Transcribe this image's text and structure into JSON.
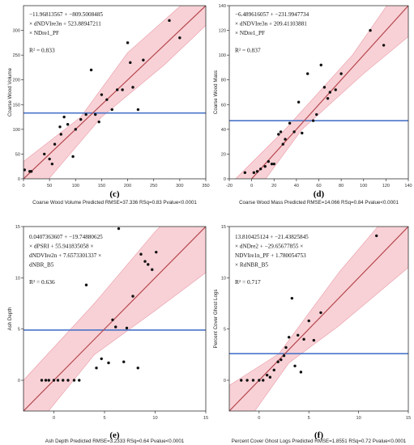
{
  "chart_data": [
    {
      "type": "scatter",
      "panel_label": "(c)",
      "equation_lines": [
        "−11.96813567 + −809.5008485",
        "× dNDVIre3n + 523.88947211",
        "× NDre1_PF"
      ],
      "r2": "R² = 0.833",
      "xlabel": "Coarse Wood Volume Predicted RMSE=37.336 RSq=0.83 Pvalue<0.0001",
      "ylabel": "Coarse Wood Volume",
      "xlim": [
        0,
        350
      ],
      "ylim": [
        0,
        350
      ],
      "xticks": [
        0,
        50,
        100,
        150,
        200,
        250,
        300,
        350
      ],
      "yticks": [
        0,
        50,
        100,
        150,
        200,
        250,
        300
      ],
      "mean_line": 133,
      "fit_line": [
        [
          0,
          0
        ],
        [
          350,
          350
        ]
      ],
      "band_lower": [
        [
          0,
          -60
        ],
        [
          150,
          125
        ],
        [
          270,
          230
        ],
        [
          350,
          310
        ]
      ],
      "band_upper": [
        [
          0,
          35
        ],
        [
          110,
          125
        ],
        [
          200,
          255
        ],
        [
          350,
          395
        ]
      ],
      "x": [
        2,
        12,
        15,
        40,
        50,
        55,
        60,
        70,
        72,
        78,
        85,
        95,
        100,
        110,
        120,
        130,
        138,
        145,
        150,
        160,
        170,
        180,
        190,
        200,
        205,
        210,
        220,
        230,
        280,
        300
      ],
      "y": [
        18,
        15,
        15,
        50,
        40,
        30,
        70,
        105,
        90,
        125,
        110,
        45,
        100,
        120,
        130,
        220,
        130,
        115,
        170,
        160,
        140,
        180,
        180,
        275,
        235,
        185,
        140,
        240,
        320,
        285
      ]
    },
    {
      "type": "scatter",
      "panel_label": "(d)",
      "equation_lines": [
        "−6.489616057 + −231.9947734",
        "× dNDVIre3n + 209.41103881",
        "× NDre1_PF"
      ],
      "r2": "R² = 0.837",
      "xlabel": "Coarse Wood Mass Predicted RMSE=14.066 RSq=0.84 Pvalue<0.0001",
      "ylabel": "Coarse Wood Mass",
      "xlim": [
        -20,
        140
      ],
      "ylim": [
        0,
        140
      ],
      "xticks": [
        -20,
        0,
        20,
        40,
        60,
        80,
        100,
        120,
        140
      ],
      "yticks": [
        0,
        20,
        40,
        60,
        80,
        100,
        120,
        140
      ],
      "mean_line": 47,
      "fit_line": [
        [
          -20,
          -20
        ],
        [
          140,
          140
        ]
      ],
      "band_lower": [
        [
          -20,
          -40
        ],
        [
          45,
          40
        ],
        [
          100,
          85
        ],
        [
          140,
          115
        ]
      ],
      "band_upper": [
        [
          -20,
          -5
        ],
        [
          30,
          40
        ],
        [
          90,
          100
        ],
        [
          140,
          165
        ]
      ],
      "x": [
        -6,
        2,
        5,
        8,
        12,
        15,
        18,
        20,
        24,
        26,
        28,
        30,
        34,
        38,
        42,
        45,
        50,
        55,
        58,
        62,
        65,
        68,
        70,
        75,
        80,
        106,
        118
      ],
      "y": [
        5,
        5,
        6,
        8,
        10,
        14,
        12,
        12,
        36,
        38,
        28,
        32,
        45,
        38,
        62,
        37,
        85,
        47,
        52,
        92,
        74,
        65,
        70,
        72,
        85,
        120,
        108
      ]
    },
    {
      "type": "scatter",
      "panel_label": "(e)",
      "equation_lines": [
        "0.0407363607 + −19.74880625",
        "× dPSRI + 55.941835058 ×",
        "dNDVIre2n + 7.6573301337 ×",
        "dNBR_B5"
      ],
      "r2": "R² = 0.636",
      "xlabel": "Ash Depth Predicted RMSE=3.2333 RSq=0.64 Pvalue<0.0001",
      "ylabel": "Ash Depth",
      "xlim": [
        -3,
        15
      ],
      "ylim": [
        -3,
        15
      ],
      "xticks": [
        0,
        5,
        10,
        15
      ],
      "yticks": [
        0,
        5,
        10,
        15
      ],
      "mean_line": 4.9,
      "fit_line": [
        [
          -3,
          -3
        ],
        [
          15,
          15
        ]
      ],
      "band_lower": [
        [
          -3,
          -6
        ],
        [
          4,
          2.5
        ],
        [
          10,
          6.8
        ],
        [
          15,
          10.5
        ]
      ],
      "band_upper": [
        [
          -3,
          0
        ],
        [
          4,
          7.5
        ],
        [
          10,
          14.5
        ],
        [
          15,
          19.5
        ]
      ],
      "x": [
        -1.2,
        -0.8,
        -0.5,
        0,
        0.4,
        0.9,
        1.4,
        2.0,
        2.5,
        3.2,
        4.2,
        4.7,
        5.4,
        5.8,
        6.1,
        6.4,
        6.9,
        7.2,
        7.8,
        8.3,
        8.6,
        9.0,
        9.3,
        9.7,
        10.1
      ],
      "y": [
        0,
        0,
        0,
        0,
        0,
        0,
        0,
        0,
        0,
        9.3,
        1.2,
        2.1,
        1.7,
        5.9,
        5.2,
        14.8,
        1.8,
        5.1,
        8.2,
        1.2,
        12.3,
        11.6,
        11.3,
        10.8,
        12.5
      ]
    },
    {
      "type": "scatter",
      "panel_label": "(f)",
      "equation_lines": [
        "13.810425124 + −21.43825845",
        "× dNDre2 + −29.65677855 ×",
        "NDVIre1n_PF + 1.780054753",
        "× RdNBR_B5"
      ],
      "r2": "R² = 0.717",
      "xlabel": "Percent Cover Ghost Logs Predicted RMSE=1.8551 RSq=0.72 Pvalue<0.0001",
      "ylabel": "Percent Cover Ghost Logs",
      "xlim": [
        -3,
        15
      ],
      "ylim": [
        -3,
        15
      ],
      "xticks": [
        0,
        5,
        10,
        15
      ],
      "yticks": [
        0,
        5,
        10,
        15
      ],
      "mean_line": 2.6,
      "fit_line": [
        [
          -3,
          -3
        ],
        [
          15,
          15
        ]
      ],
      "band_lower": [
        [
          -3,
          -6.5
        ],
        [
          3,
          1.7
        ],
        [
          8,
          5.3
        ],
        [
          15,
          11
        ]
      ],
      "band_upper": [
        [
          -3,
          -0.5
        ],
        [
          2,
          2.6
        ],
        [
          8,
          10.5
        ],
        [
          15,
          18.5
        ]
      ],
      "x": [
        -1.8,
        -1.2,
        -0.6,
        0,
        0.4,
        0.8,
        1.1,
        1.5,
        1.9,
        2.2,
        2.5,
        2.7,
        3.0,
        3.3,
        3.6,
        3.9,
        4.2,
        4.5,
        5.0,
        5.5,
        6.2,
        11.8
      ],
      "y": [
        0,
        0,
        0,
        0,
        0,
        0.5,
        0.3,
        1.0,
        1.8,
        2.0,
        2.4,
        3.2,
        4.2,
        8.0,
        1.4,
        4.4,
        0.8,
        4.0,
        5.8,
        3.9,
        6.6,
        14.1
      ]
    }
  ]
}
